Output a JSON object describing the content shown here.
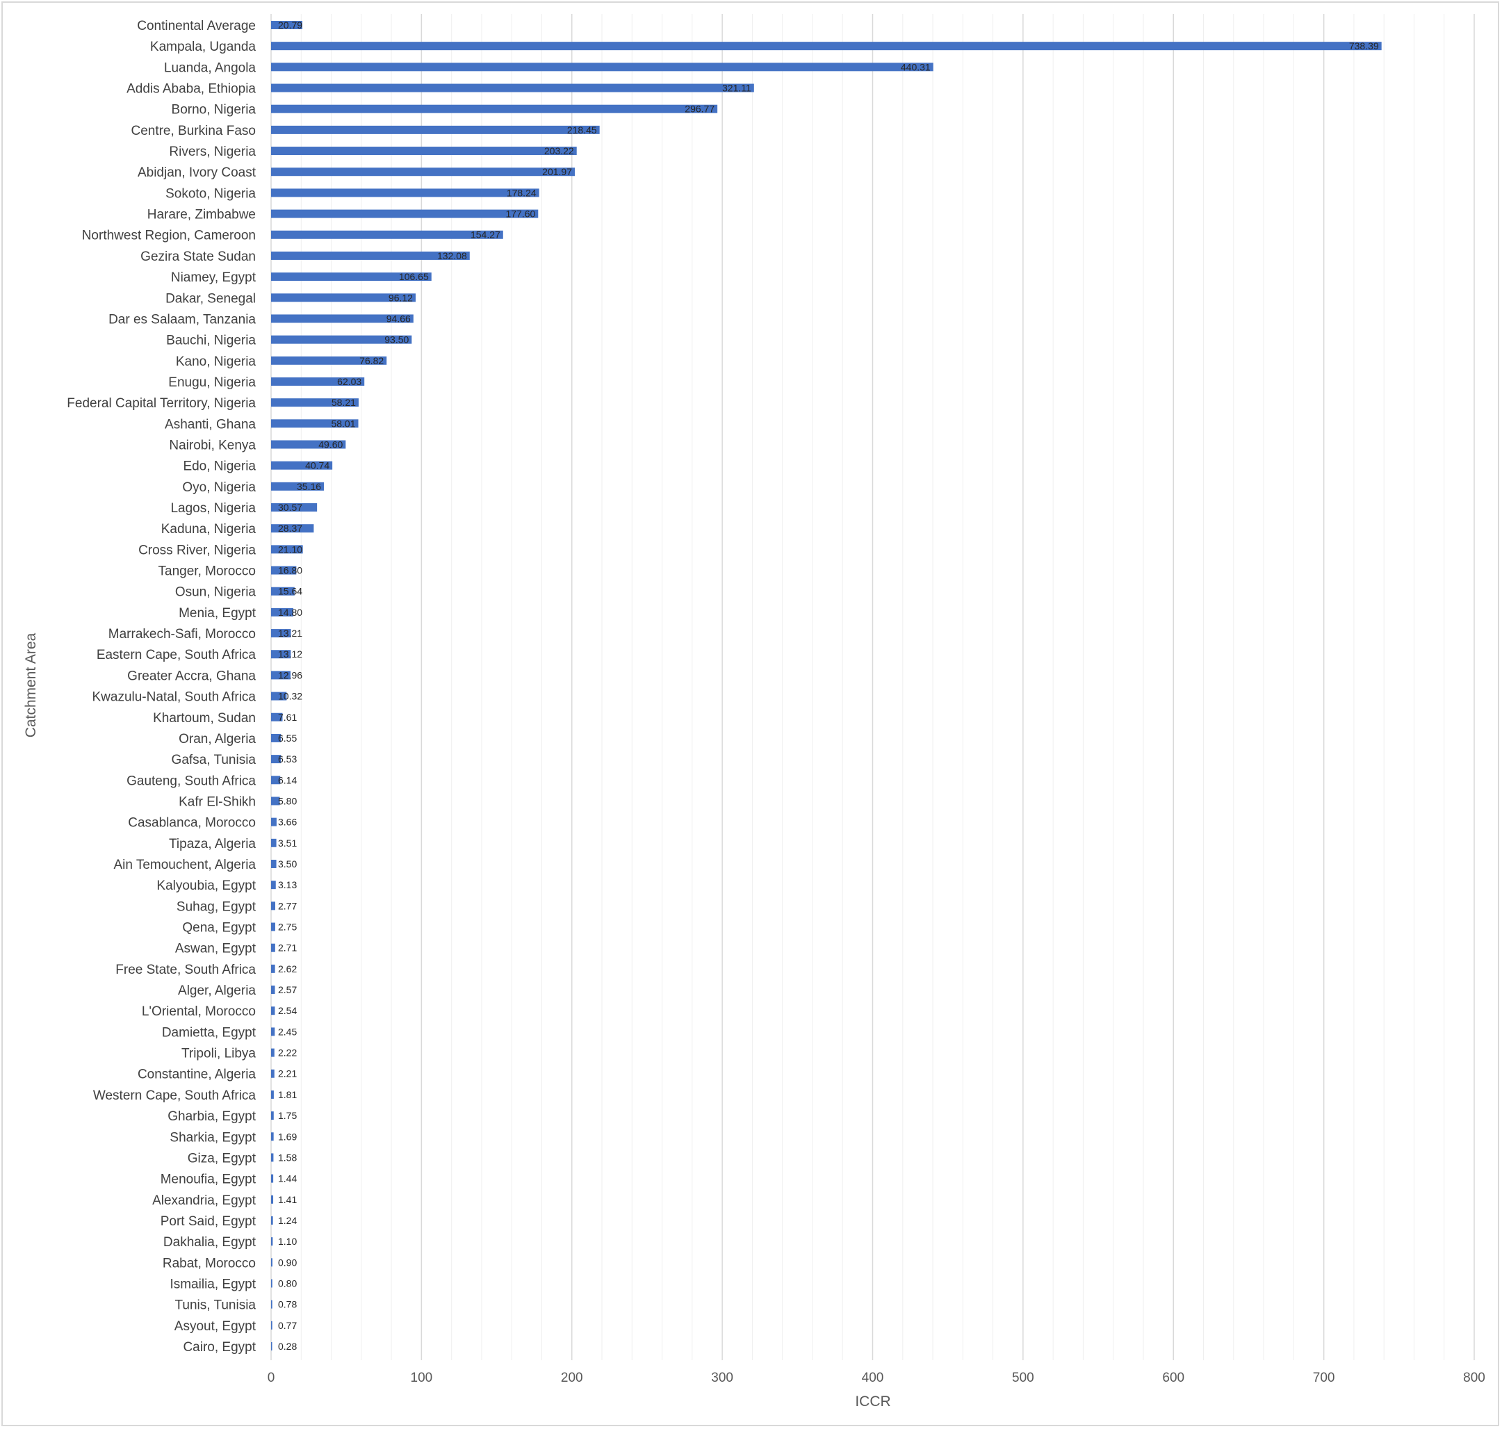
{
  "chart_data": {
    "type": "bar",
    "orientation": "horizontal",
    "title": "",
    "xlabel": "ICCR",
    "ylabel": "Catchment Area",
    "xlim": [
      0,
      800
    ],
    "xticks": [
      "0",
      "100",
      "200",
      "300",
      "400",
      "500",
      "600",
      "700",
      "800"
    ],
    "grid": true,
    "legend": "none",
    "bar_color": "#4472c4",
    "categories": [
      "Continental Average",
      "Kampala, Uganda",
      "Luanda, Angola",
      "Addis Ababa, Ethiopia",
      "Borno, Nigeria",
      "Centre, Burkina Faso",
      "Rivers, Nigeria",
      "Abidjan, Ivory Coast",
      "Sokoto, Nigeria",
      "Harare, Zimbabwe",
      "Northwest Region, Cameroon",
      "Gezira State Sudan",
      "Niamey, Egypt",
      "Dakar, Senegal",
      "Dar es Salaam, Tanzania",
      "Bauchi, Nigeria",
      "Kano, Nigeria",
      "Enugu, Nigeria",
      "Federal Capital Territory, Nigeria",
      "Ashanti, Ghana",
      "Nairobi, Kenya",
      "Edo, Nigeria",
      "Oyo, Nigeria",
      "Lagos, Nigeria",
      "Kaduna, Nigeria",
      "Cross River, Nigeria",
      "Tanger, Morocco",
      "Osun, Nigeria",
      "Menia, Egypt",
      "Marrakech-Safi, Morocco",
      "Eastern Cape, South Africa",
      "Greater Accra, Ghana",
      "Kwazulu-Natal, South Africa",
      "Khartoum, Sudan",
      "Oran, Algeria",
      "Gafsa, Tunisia",
      "Gauteng, South Africa",
      "Kafr El-Shikh",
      "Casablanca, Morocco",
      "Tipaza,  Algeria",
      "Ain Temouchent, Algeria",
      "Kalyoubia, Egypt",
      "Suhag, Egypt",
      "Qena, Egypt",
      "Aswan, Egypt",
      "Free State, South Africa",
      "Alger, Algeria",
      "L'Oriental, Morocco",
      "Damietta, Egypt",
      "Tripoli, Libya",
      "Constantine, Algeria",
      "Western Cape, South Africa",
      "Gharbia, Egypt",
      "Sharkia, Egypt",
      "Giza, Egypt",
      "Menoufia, Egypt",
      "Alexandria, Egypt",
      "Port Said, Egypt",
      "Dakhalia, Egypt",
      "Rabat, Morocco",
      "Ismailia, Egypt",
      "Tunis, Tunisia",
      "Asyout, Egypt",
      "Cairo, Egypt"
    ],
    "labels": [
      "20.79",
      "738.39",
      "440.31",
      "321.11",
      "296.77",
      "218.45",
      "203.22",
      "201.97",
      "178.24",
      "177.60",
      "154.27",
      "132.08",
      "106.65",
      "96.12",
      "94.66",
      "93.50",
      "76.82",
      "62.03",
      "58.21",
      "58.01",
      "49.60",
      "40.74",
      "35.16",
      "30.57",
      "28.37",
      "21.10",
      "16.80",
      "15.64",
      "14.80",
      "13.21",
      "13.12",
      "12.96",
      "10.32",
      "7.61",
      "6.55",
      "6.53",
      "6.14",
      "5.80",
      "3.66",
      "3.51",
      "3.50",
      "3.13",
      "2.77",
      "2.75",
      "2.71",
      "2.62",
      "2.57",
      "2.54",
      "2.45",
      "2.22",
      "2.21",
      "1.81",
      "1.75",
      "1.69",
      "1.58",
      "1.44",
      "1.41",
      "1.24",
      "1.10",
      "0.90",
      "0.80",
      "0.78",
      "0.77",
      "0.28"
    ],
    "values": [
      20.79,
      738.39,
      440.31,
      321.11,
      296.77,
      218.45,
      203.22,
      201.97,
      178.24,
      177.6,
      154.27,
      132.08,
      106.65,
      96.12,
      94.66,
      93.5,
      76.82,
      62.03,
      58.21,
      58.01,
      49.6,
      40.74,
      35.16,
      30.57,
      28.37,
      21.1,
      16.8,
      15.64,
      14.8,
      13.21,
      13.12,
      12.96,
      10.32,
      7.61,
      6.55,
      6.53,
      6.14,
      5.8,
      3.66,
      3.51,
      3.5,
      3.13,
      2.77,
      2.75,
      2.71,
      2.62,
      2.57,
      2.54,
      2.45,
      2.22,
      2.21,
      1.81,
      1.75,
      1.69,
      1.58,
      1.44,
      1.41,
      1.24,
      1.1,
      0.9,
      0.8,
      0.78,
      0.77,
      0.28
    ]
  }
}
